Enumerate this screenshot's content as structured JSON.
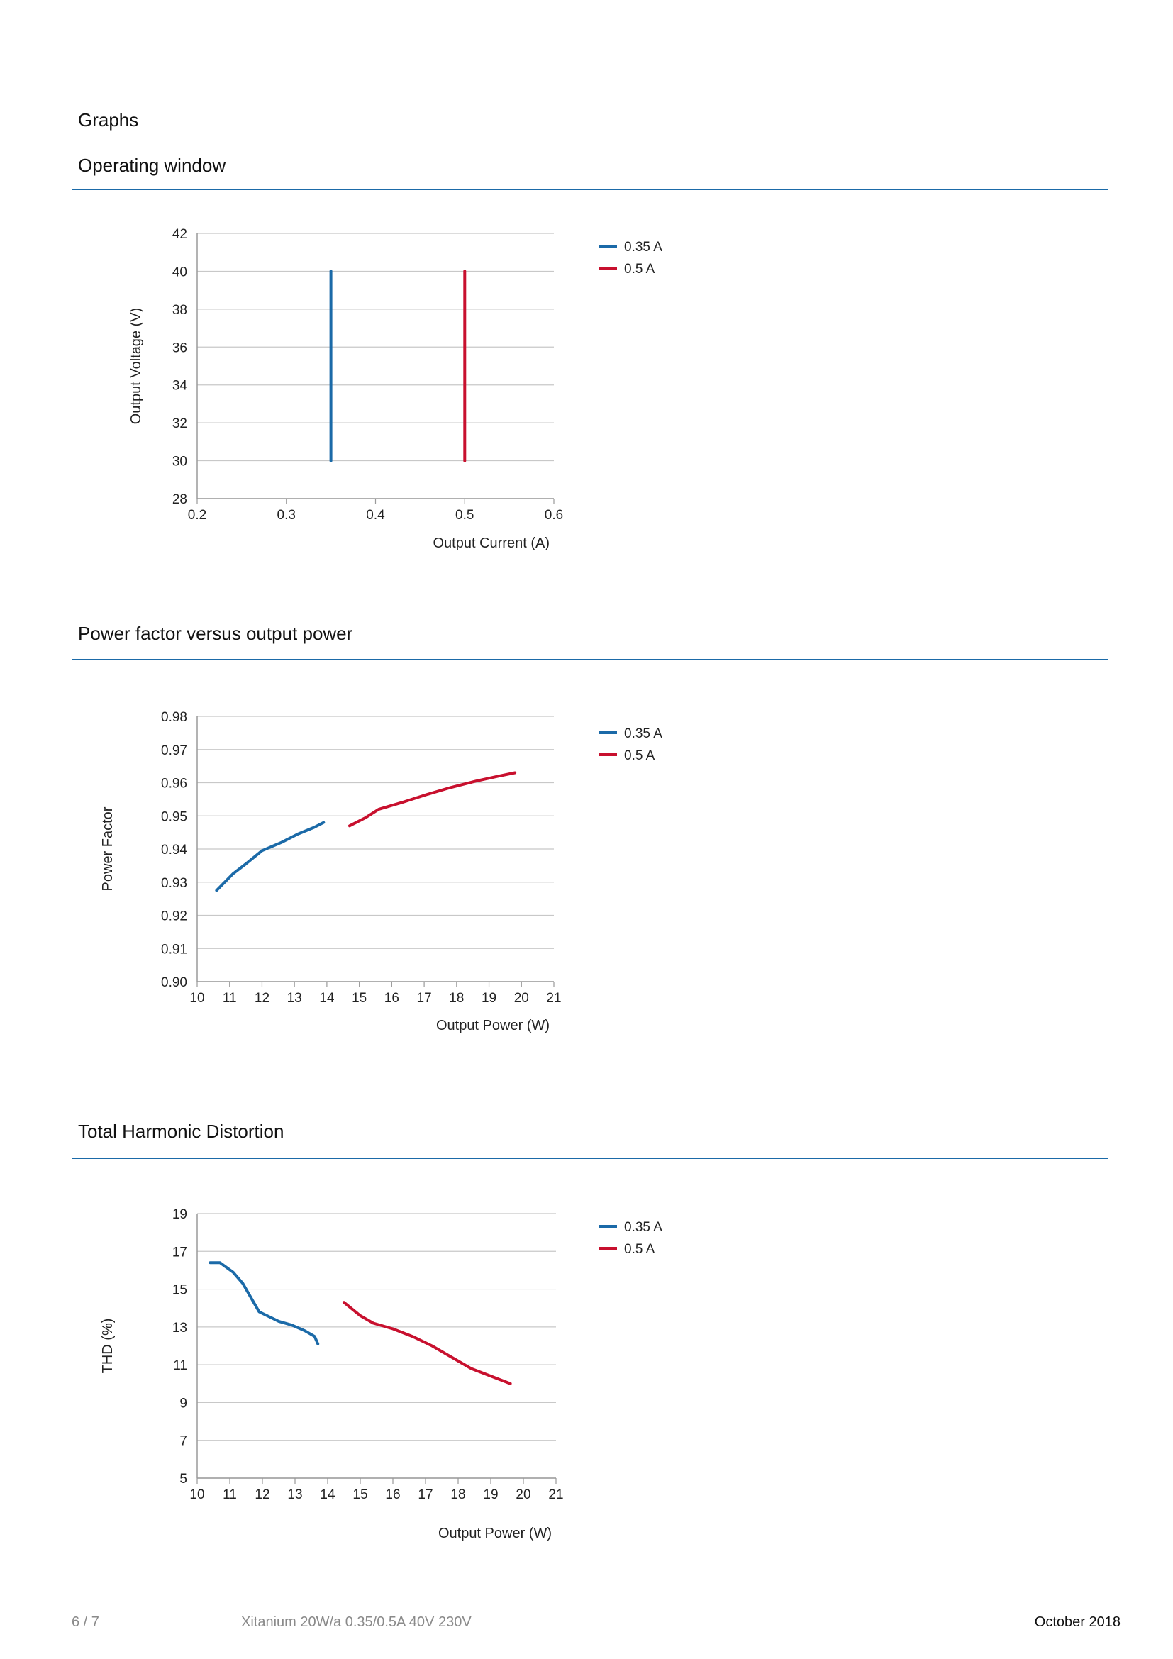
{
  "page": {
    "heading": "Graphs",
    "footer": {
      "page_number": "6 / 7",
      "product": "Xitanium 20W/a 0.35/0.5A 40V 230V",
      "date": "October 2018"
    }
  },
  "colors": {
    "series_a": "#1b6aa8",
    "series_b": "#c8102e",
    "rule": "#1b6aa8",
    "grid": "#c8c8c8"
  },
  "sections": [
    {
      "title": "Operating window"
    },
    {
      "title": "Power factor versus output power"
    },
    {
      "title": "Total Harmonic Distortion"
    }
  ],
  "chart_data": [
    {
      "type": "line",
      "title": "Operating window",
      "xlabel": "Output Current (A)",
      "ylabel": "Output Voltage (V)",
      "xlim": [
        0.2,
        0.6
      ],
      "ylim": [
        28,
        42
      ],
      "xticks": [
        0.2,
        0.3,
        0.4,
        0.5,
        0.6
      ],
      "xtick_labels": [
        "0.2",
        "0.3",
        "0.4",
        "0.5",
        "0.6"
      ],
      "yticks": [
        28,
        30,
        32,
        34,
        36,
        38,
        40,
        42
      ],
      "ytick_labels": [
        "28",
        "30",
        "32",
        "34",
        "36",
        "38",
        "40",
        "42"
      ],
      "grid": true,
      "legend_position": "right",
      "series": [
        {
          "name": "0.35 A",
          "x": [
            0.35,
            0.35
          ],
          "y": [
            30,
            40
          ]
        },
        {
          "name": "0.5 A",
          "x": [
            0.5,
            0.5
          ],
          "y": [
            30,
            40
          ]
        }
      ]
    },
    {
      "type": "line",
      "title": "Power factor versus output power",
      "xlabel": "Output Power (W)",
      "ylabel": "Power Factor",
      "xlim": [
        10,
        21
      ],
      "ylim": [
        0.9,
        0.98
      ],
      "xticks": [
        10,
        11,
        12,
        13,
        14,
        15,
        16,
        17,
        18,
        19,
        20,
        21
      ],
      "xtick_labels": [
        "10",
        "11",
        "12",
        "13",
        "14",
        "15",
        "16",
        "17",
        "18",
        "19",
        "20",
        "21"
      ],
      "yticks": [
        0.9,
        0.91,
        0.92,
        0.93,
        0.94,
        0.95,
        0.96,
        0.97,
        0.98
      ],
      "ytick_labels": [
        "0.90",
        "0.91",
        "0.92",
        "0.93",
        "0.94",
        "0.95",
        "0.96",
        "0.97",
        "0.98"
      ],
      "grid": true,
      "legend_position": "right",
      "series": [
        {
          "name": "0.35 A",
          "x": [
            10.6,
            11.1,
            11.5,
            12.0,
            12.6,
            13.1,
            13.6,
            13.9
          ],
          "y": [
            0.9275,
            0.9325,
            0.9355,
            0.9395,
            0.942,
            0.9445,
            0.9465,
            0.948
          ]
        },
        {
          "name": "0.5 A",
          "x": [
            14.7,
            15.2,
            15.6,
            16.3,
            17.1,
            17.8,
            18.6,
            19.3,
            19.8
          ],
          "y": [
            0.947,
            0.9495,
            0.952,
            0.954,
            0.9565,
            0.9585,
            0.9605,
            0.962,
            0.963
          ]
        }
      ]
    },
    {
      "type": "line",
      "title": "Total Harmonic Distortion",
      "xlabel": "Output Power (W)",
      "ylabel": "THD (%)",
      "xlim": [
        10,
        21
      ],
      "ylim": [
        5,
        19
      ],
      "xticks": [
        10,
        11,
        12,
        13,
        14,
        15,
        16,
        17,
        18,
        19,
        20,
        21
      ],
      "xtick_labels": [
        "10",
        "11",
        "12",
        "13",
        "14",
        "15",
        "16",
        "17",
        "18",
        "19",
        "20",
        "21"
      ],
      "yticks": [
        5,
        7,
        9,
        11,
        13,
        15,
        17,
        19
      ],
      "ytick_labels": [
        "5",
        "7",
        "9",
        "11",
        "13",
        "15",
        "17",
        "19"
      ],
      "grid": true,
      "legend_position": "right",
      "series": [
        {
          "name": "0.35 A",
          "x": [
            10.4,
            10.7,
            11.1,
            11.4,
            11.9,
            12.5,
            12.9,
            13.3,
            13.6,
            13.7
          ],
          "y": [
            16.4,
            16.4,
            15.9,
            15.3,
            13.8,
            13.3,
            13.1,
            12.8,
            12.5,
            12.1
          ]
        },
        {
          "name": "0.5 A",
          "x": [
            14.5,
            15.0,
            15.4,
            16.0,
            16.6,
            17.2,
            17.8,
            18.4,
            19.0,
            19.6
          ],
          "y": [
            14.3,
            13.6,
            13.2,
            12.9,
            12.5,
            12.0,
            11.4,
            10.8,
            10.4,
            10.0
          ]
        }
      ]
    }
  ]
}
